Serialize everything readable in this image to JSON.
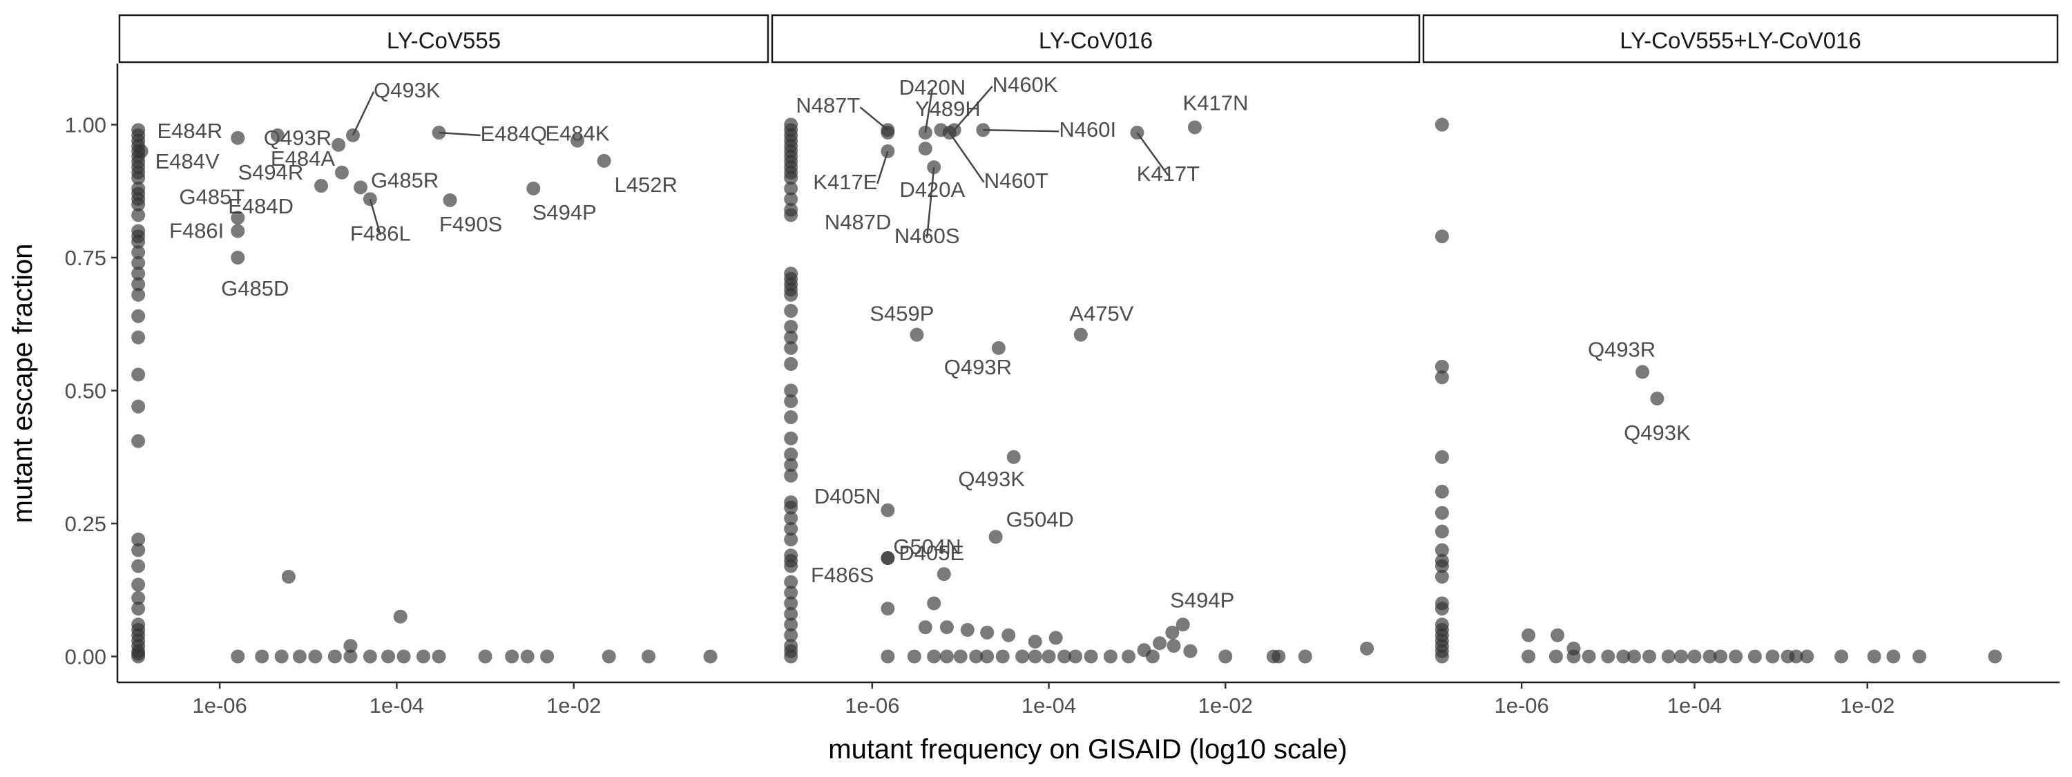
{
  "figure": {
    "xlabel": "mutant frequency on GISAID (log10 scale)",
    "ylabel": "mutant escape fraction"
  },
  "chart_data": [
    {
      "type": "scatter",
      "title": "LY-CoV555",
      "xlabel": "mutant frequency on GISAID (log10 scale)",
      "ylabel": "mutant escape fraction",
      "xscale": "log10",
      "xlim": [
        1e-07,
        1
      ],
      "ylim": [
        0,
        1
      ],
      "xticks": [
        "1e-06",
        "1e-04",
        "1e-02"
      ],
      "yticks": [
        "0.00",
        "0.25",
        "0.50",
        "0.75",
        "1.00"
      ],
      "grid": false,
      "colors": {
        "point": "#333333",
        "label": "#555555"
      },
      "labeled_points": [
        {
          "label": "E484R",
          "x": 1.6e-06,
          "y": 0.975
        },
        {
          "label": "S494R",
          "x": 4.5e-06,
          "y": 0.98
        },
        {
          "label": "Q493R",
          "x": 2.2e-05,
          "y": 0.962
        },
        {
          "label": "Q493K",
          "x": 3.2e-05,
          "y": 0.98
        },
        {
          "label": "E484Q",
          "x": 0.0003,
          "y": 0.985
        },
        {
          "label": "E484K",
          "x": 0.011,
          "y": 0.97
        },
        {
          "label": "L452R",
          "x": 0.022,
          "y": 0.932
        },
        {
          "label": "E484V",
          "x": 1.3e-07,
          "y": 0.95
        },
        {
          "label": "E484A",
          "x": 2.4e-05,
          "y": 0.91
        },
        {
          "label": "G485R",
          "x": 3.9e-05,
          "y": 0.882
        },
        {
          "label": "E484D",
          "x": 1.4e-05,
          "y": 0.885
        },
        {
          "label": "S494P",
          "x": 0.0035,
          "y": 0.88
        },
        {
          "label": "F490S",
          "x": 0.0004,
          "y": 0.858
        },
        {
          "label": "F486L",
          "x": 5e-05,
          "y": 0.86
        },
        {
          "label": "G485T",
          "x": 1.6e-06,
          "y": 0.825
        },
        {
          "label": "F486I",
          "x": 1.6e-06,
          "y": 0.8
        },
        {
          "label": "G485D",
          "x": 1.6e-06,
          "y": 0.75
        }
      ],
      "points": [
        {
          "x": 6e-06,
          "y": 0.15
        },
        {
          "x": 0.00011,
          "y": 0.075
        },
        {
          "x": 3e-05,
          "y": 0.02
        },
        {
          "x": 1.2e-07,
          "y": 0.47
        },
        {
          "x": 1.2e-07,
          "y": 0.405
        },
        {
          "x": 1.2e-07,
          "y": 0.53
        },
        {
          "x": 1.2e-07,
          "y": 0.6
        },
        {
          "x": 1.2e-07,
          "y": 0.64
        },
        {
          "x": 1.2e-07,
          "y": 0.22
        },
        {
          "x": 1.2e-07,
          "y": 0.135
        },
        {
          "x": 1.2e-07,
          "y": 0.05
        }
      ],
      "zero_x": [
        1.6e-06,
        3e-06,
        5e-06,
        8e-06,
        1.2e-05,
        2e-05,
        3e-05,
        5e-05,
        8e-05,
        0.00012,
        0.0002,
        0.0003,
        0.001,
        0.002,
        0.003,
        0.005,
        0.025,
        0.07,
        0.35
      ],
      "column_y": [
        0.99,
        0.98,
        0.97,
        0.96,
        0.95,
        0.94,
        0.93,
        0.92,
        0.91,
        0.9,
        0.88,
        0.87,
        0.86,
        0.85,
        0.83,
        0.8,
        0.79,
        0.78,
        0.76,
        0.74,
        0.72,
        0.7,
        0.68,
        0.2,
        0.17,
        0.11,
        0.09,
        0.06,
        0.04,
        0.03,
        0.02,
        0.01,
        0.005,
        0.0
      ]
    },
    {
      "type": "scatter",
      "title": "LY-CoV016",
      "xscale": "log10",
      "xlim": [
        1e-07,
        1
      ],
      "ylim": [
        0,
        1
      ],
      "xticks": [
        "1e-06",
        "1e-04",
        "1e-02"
      ],
      "colors": {
        "point": "#333333",
        "label": "#555555"
      },
      "labeled_points": [
        {
          "label": "N487T",
          "x": 1.5e-06,
          "y": 0.99
        },
        {
          "label": "D420N",
          "x": 4e-06,
          "y": 0.985
        },
        {
          "label": "Y489H",
          "x": 6e-06,
          "y": 0.99
        },
        {
          "label": "N460K",
          "x": 8.5e-06,
          "y": 0.99
        },
        {
          "label": "K417N",
          "x": 0.0045,
          "y": 0.995
        },
        {
          "label": "N460I",
          "x": 1.8e-05,
          "y": 0.99
        },
        {
          "label": "K417T",
          "x": 0.001,
          "y": 0.985
        },
        {
          "label": "K417E",
          "x": 1.5e-06,
          "y": 0.95
        },
        {
          "label": "D420A",
          "x": 4e-06,
          "y": 0.955
        },
        {
          "label": "N460T",
          "x": 7.5e-06,
          "y": 0.985
        },
        {
          "label": "N487D",
          "x": 1.5e-06,
          "y": 0.985
        },
        {
          "label": "N460S",
          "x": 5e-06,
          "y": 0.92
        },
        {
          "label": "S459P",
          "x": 3.2e-06,
          "y": 0.605
        },
        {
          "label": "A475V",
          "x": 0.00023,
          "y": 0.605
        },
        {
          "label": "Q493R",
          "x": 2.7e-05,
          "y": 0.58
        },
        {
          "label": "Q493K",
          "x": 4e-05,
          "y": 0.375
        },
        {
          "label": "D405N",
          "x": 1.5e-06,
          "y": 0.275
        },
        {
          "label": "G504D",
          "x": 2.5e-05,
          "y": 0.225
        },
        {
          "label": "G504N",
          "x": 1.5e-06,
          "y": 0.185
        },
        {
          "label": "F486S",
          "x": 1.5e-06,
          "y": 0.185
        },
        {
          "label": "D405E",
          "x": 6.5e-06,
          "y": 0.155
        },
        {
          "label": "S494P",
          "x": 0.0033,
          "y": 0.06
        }
      ],
      "points": [
        {
          "x": 5e-06,
          "y": 0.1
        },
        {
          "x": 1.5e-06,
          "y": 0.09
        },
        {
          "x": 4e-06,
          "y": 0.055
        },
        {
          "x": 7e-06,
          "y": 0.055
        },
        {
          "x": 1.2e-05,
          "y": 0.05
        },
        {
          "x": 2e-05,
          "y": 0.045
        },
        {
          "x": 3.5e-05,
          "y": 0.04
        },
        {
          "x": 0.00012,
          "y": 0.035
        },
        {
          "x": 7e-05,
          "y": 0.028
        },
        {
          "x": 0.0025,
          "y": 0.045
        },
        {
          "x": 0.0026,
          "y": 0.02
        },
        {
          "x": 0.004,
          "y": 0.01
        },
        {
          "x": 0.4,
          "y": 0.015
        },
        {
          "x": 0.0012,
          "y": 0.012
        },
        {
          "x": 0.0018,
          "y": 0.025
        }
      ],
      "zero_x": [
        1.5e-06,
        3e-06,
        5e-06,
        7e-06,
        1e-05,
        1.5e-05,
        2e-05,
        3e-05,
        5e-05,
        7e-05,
        0.0001,
        0.00015,
        0.0002,
        0.0003,
        0.0005,
        0.0008,
        0.0015,
        0.01,
        0.035,
        0.04,
        0.08
      ],
      "column_y": [
        1.0,
        0.99,
        0.98,
        0.97,
        0.96,
        0.95,
        0.94,
        0.93,
        0.92,
        0.91,
        0.9,
        0.88,
        0.86,
        0.84,
        0.83,
        0.72,
        0.71,
        0.7,
        0.69,
        0.68,
        0.65,
        0.62,
        0.6,
        0.58,
        0.55,
        0.5,
        0.48,
        0.45,
        0.41,
        0.38,
        0.36,
        0.34,
        0.29,
        0.28,
        0.26,
        0.24,
        0.22,
        0.19,
        0.18,
        0.17,
        0.14,
        0.12,
        0.1,
        0.08,
        0.06,
        0.04,
        0.02,
        0.01,
        0.0
      ]
    },
    {
      "type": "scatter",
      "title": "LY-CoV555+LY-CoV016",
      "xscale": "log10",
      "xlim": [
        1e-07,
        1
      ],
      "ylim": [
        0,
        1
      ],
      "xticks": [
        "1e-06",
        "1e-04",
        "1e-02"
      ],
      "colors": {
        "point": "#333333",
        "label": "#555555"
      },
      "labeled_points": [
        {
          "label": "Q493R",
          "x": 2.5e-05,
          "y": 0.535
        },
        {
          "label": "Q493K",
          "x": 3.7e-05,
          "y": 0.485
        }
      ],
      "points": [
        {
          "x": 1.2e-06,
          "y": 0.04
        },
        {
          "x": 2.6e-06,
          "y": 0.04
        },
        {
          "x": 4e-06,
          "y": 0.015
        }
      ],
      "zero_x": [
        1.2e-06,
        2.5e-06,
        4e-06,
        6e-06,
        1e-05,
        1.5e-05,
        2e-05,
        3e-05,
        5e-05,
        7e-05,
        0.0001,
        0.00015,
        0.0002,
        0.0003,
        0.0005,
        0.0008,
        0.0012,
        0.0015,
        0.002,
        0.005,
        0.012,
        0.02,
        0.04,
        0.3
      ],
      "column_y": [
        1.0,
        0.79,
        0.545,
        0.525,
        0.375,
        0.31,
        0.27,
        0.235,
        0.2,
        0.18,
        0.17,
        0.15,
        0.1,
        0.09,
        0.06,
        0.05,
        0.04,
        0.03,
        0.02,
        0.01,
        0.0
      ]
    }
  ]
}
